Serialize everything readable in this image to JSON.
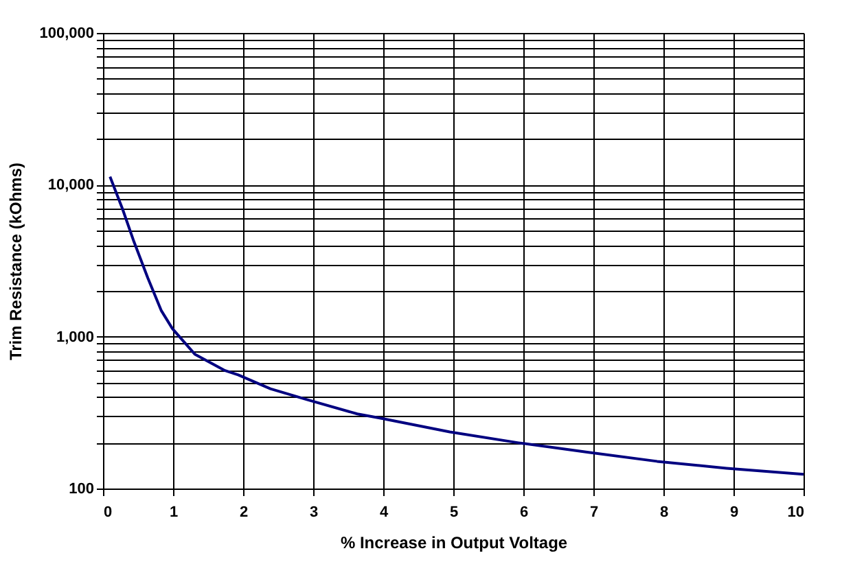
{
  "chart_data": {
    "type": "line",
    "xlabel": "% Increase in Output Voltage",
    "ylabel": "Trim Resistance (kOhms)",
    "log": "y",
    "grid": true,
    "line_style": "solid",
    "marker": "none",
    "xlim": [
      0,
      10
    ],
    "xticks": [
      0,
      1,
      2,
      3,
      4,
      5,
      6,
      7,
      8,
      9,
      10
    ],
    "ylim": [
      100,
      100000
    ],
    "yticks": [
      100,
      {
        "value": 200,
        "label": null
      },
      {
        "value": 300,
        "label": null
      },
      {
        "value": 400,
        "label": null
      },
      {
        "value": 500,
        "label": null
      },
      {
        "value": 600,
        "label": null
      },
      {
        "value": 700,
        "label": null
      },
      {
        "value": 800,
        "label": null
      },
      {
        "value": 900,
        "label": null
      },
      {
        "value": 1000,
        "label": "1,000"
      },
      {
        "value": 2000,
        "label": null
      },
      {
        "value": 3000,
        "label": null
      },
      {
        "value": 4000,
        "label": null
      },
      {
        "value": 5000,
        "label": null
      },
      {
        "value": 6000,
        "label": null
      },
      {
        "value": 7000,
        "label": null
      },
      {
        "value": 8000,
        "label": null
      },
      {
        "value": 9000,
        "label": null
      },
      {
        "value": 10000,
        "label": "10,000"
      },
      {
        "value": 20000,
        "label": null
      },
      {
        "value": 30000,
        "label": null
      },
      {
        "value": 40000,
        "label": null
      },
      {
        "value": 50000,
        "label": null
      },
      {
        "value": 60000,
        "label": null
      },
      {
        "value": 70000,
        "label": null
      },
      {
        "value": 80000,
        "label": null
      },
      {
        "value": 90000,
        "label": null
      },
      {
        "value": 100000,
        "label": "100,000"
      }
    ],
    "series": [
      {
        "color": "#000080",
        "x": [
          0.1,
          0.28,
          0.44,
          0.64,
          0.83,
          0.99,
          1.31,
          1.73,
          1.93,
          2.39,
          2.91,
          3.63,
          3.95,
          4.95,
          5.93,
          6.93,
          7.91,
          8.9,
          10
        ],
        "values": [
          11300,
          6900,
          4240,
          2430,
          1490,
          1130,
          767,
          601,
          560,
          454,
          385,
          310,
          291,
          236,
          200,
          173,
          151,
          136,
          124
        ]
      }
    ]
  }
}
